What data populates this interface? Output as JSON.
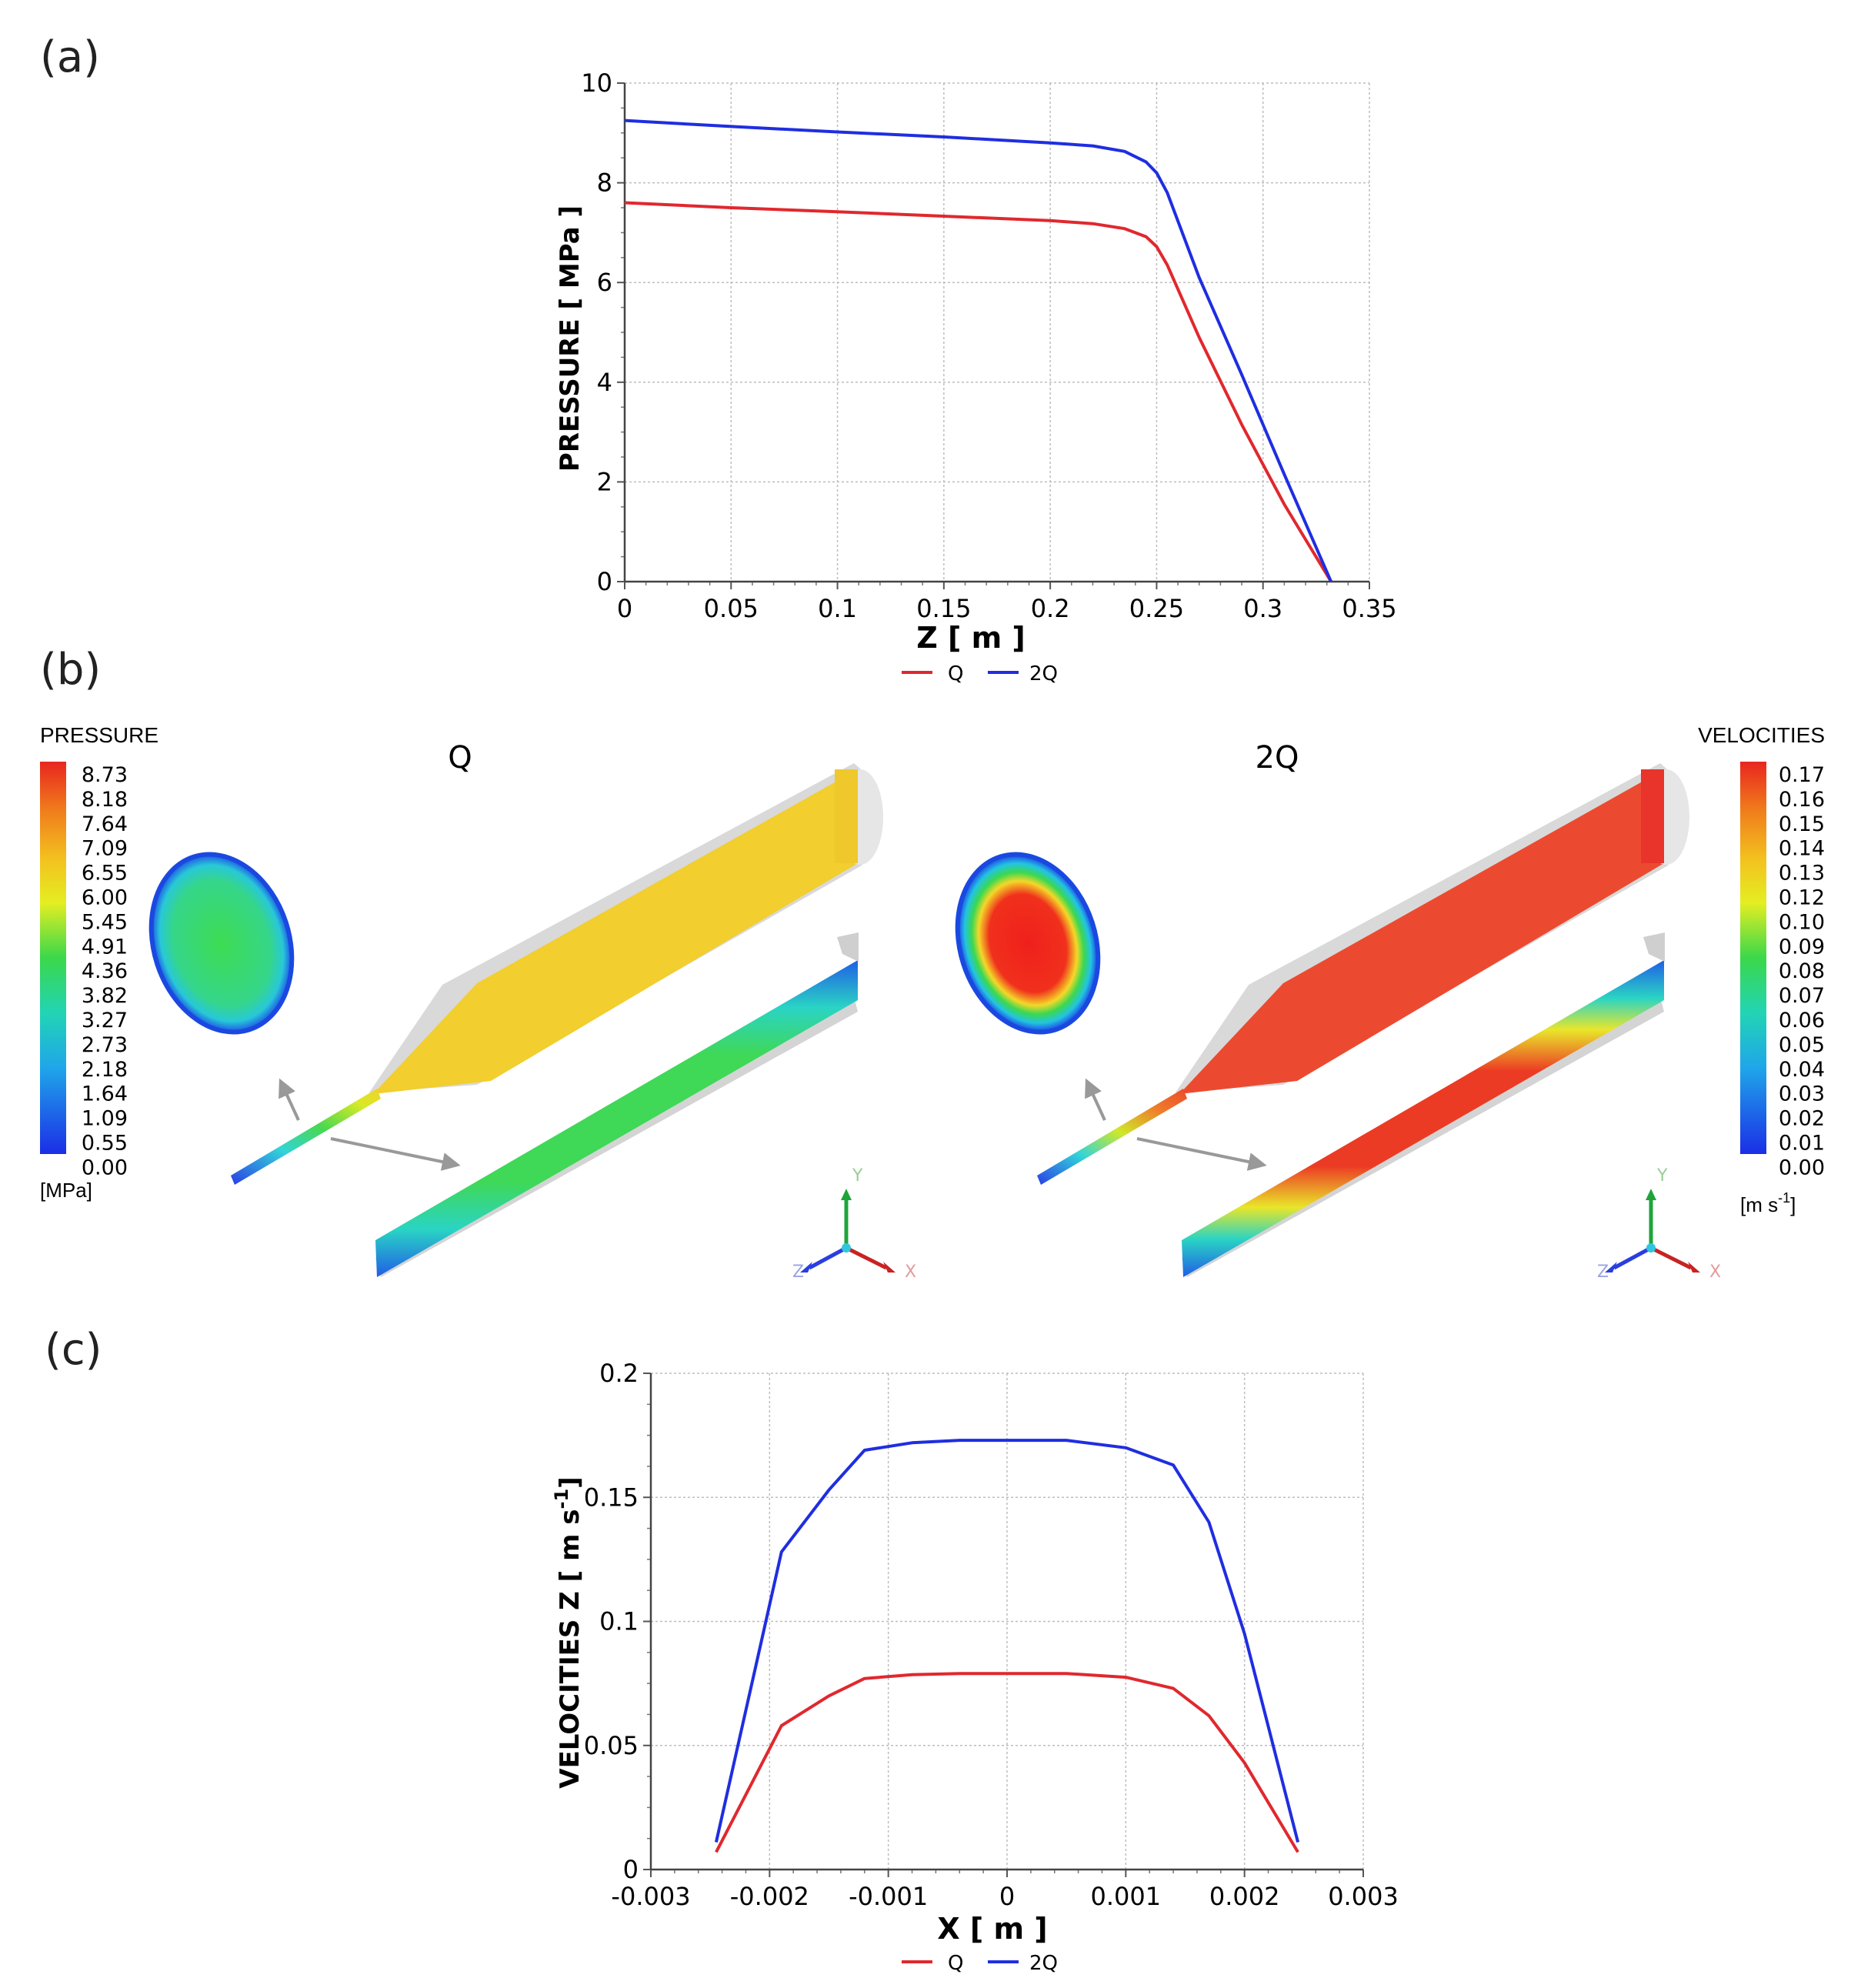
{
  "panels": {
    "a": "(a)",
    "b": "(b)",
    "c": "(c)"
  },
  "colors": {
    "q": "#e0282e",
    "q2": "#1f2ee0",
    "grid": "#bdbdbd",
    "arrow": "#999999",
    "tube": "#d9d9d9"
  },
  "chart_data": [
    {
      "type": "line",
      "xlabel": "Z [ m ]",
      "ylabel": "PRESSURE [ MPa ]",
      "xlim": [
        0,
        0.35
      ],
      "ylim": [
        0,
        10
      ],
      "xticks": [
        0,
        0.05,
        0.1,
        0.15,
        0.2,
        0.25,
        0.3,
        0.35
      ],
      "xtick_labels": [
        "0",
        "0.05",
        "0.1",
        "0.15",
        "0.2",
        "0.25",
        "0.3",
        "0.35"
      ],
      "yticks": [
        0,
        2,
        4,
        6,
        8,
        10
      ],
      "ytick_labels": [
        "0",
        "2",
        "4",
        "6",
        "8",
        "10"
      ],
      "legend": [
        "Q",
        "2Q"
      ],
      "series": [
        {
          "name": "Q",
          "color": "#e0282e",
          "x": [
            0,
            0.05,
            0.1,
            0.15,
            0.2,
            0.22,
            0.235,
            0.245,
            0.25,
            0.255,
            0.27,
            0.29,
            0.31,
            0.332
          ],
          "y": [
            7.6,
            7.5,
            7.42,
            7.33,
            7.24,
            7.18,
            7.08,
            6.92,
            6.72,
            6.35,
            4.9,
            3.15,
            1.55,
            0
          ]
        },
        {
          "name": "2Q",
          "color": "#1f2ee0",
          "x": [
            0,
            0.05,
            0.1,
            0.15,
            0.2,
            0.22,
            0.235,
            0.245,
            0.25,
            0.255,
            0.27,
            0.29,
            0.31,
            0.332
          ],
          "y": [
            9.25,
            9.13,
            9.02,
            8.92,
            8.8,
            8.74,
            8.63,
            8.42,
            8.2,
            7.8,
            6.1,
            4.15,
            2.15,
            0
          ]
        }
      ]
    },
    {
      "type": "line",
      "xlabel": "X [ m ]",
      "ylabel": "VELOCITIES Z [ m s",
      "ylabel_sup": "-1",
      "ylabel_end": "]",
      "xlim": [
        -0.003,
        0.003
      ],
      "ylim": [
        0,
        0.2
      ],
      "xticks": [
        -0.003,
        -0.002,
        -0.001,
        0,
        0.001,
        0.002,
        0.003
      ],
      "xtick_labels": [
        "-0.003",
        "-0.002",
        "-0.001",
        "0",
        "0.001",
        "0.002",
        "0.003"
      ],
      "yticks": [
        0,
        0.05,
        0.1,
        0.15,
        0.2
      ],
      "ytick_labels": [
        "0",
        "0.05",
        "0.1",
        "0.15",
        "0.2"
      ],
      "legend": [
        "Q",
        "2Q"
      ],
      "series": [
        {
          "name": "Q",
          "color": "#e0282e",
          "x": [
            -0.00245,
            -0.0019,
            -0.0015,
            -0.0012,
            -0.0008,
            -0.0004,
            0,
            0.0005,
            0.001,
            0.0014,
            0.0017,
            0.002,
            0.00245
          ],
          "y": [
            0.007,
            0.058,
            0.07,
            0.077,
            0.0785,
            0.079,
            0.079,
            0.079,
            0.0775,
            0.073,
            0.062,
            0.043,
            0.007
          ]
        },
        {
          "name": "2Q",
          "color": "#1f2ee0",
          "x": [
            -0.00245,
            -0.0019,
            -0.0015,
            -0.0012,
            -0.0008,
            -0.0004,
            0,
            0.0005,
            0.001,
            0.0014,
            0.0017,
            0.002,
            0.00245
          ],
          "y": [
            0.011,
            0.128,
            0.153,
            0.169,
            0.172,
            0.173,
            0.173,
            0.173,
            0.17,
            0.163,
            0.14,
            0.095,
            0.011
          ]
        }
      ]
    }
  ],
  "panel_b": {
    "title_q": "Q",
    "title_2q": "2Q",
    "pressure_legend": {
      "title": "PRESSURE",
      "values": [
        "8.73",
        "8.18",
        "7.64",
        "7.09",
        "6.55",
        "6.00",
        "5.45",
        "4.91",
        "4.36",
        "3.82",
        "3.27",
        "2.73",
        "2.18",
        "1.64",
        "1.09",
        "0.55",
        "0.00"
      ],
      "unit": "[MPa]"
    },
    "velocity_legend": {
      "title": "VELOCITIES",
      "values": [
        "0.17",
        "0.16",
        "0.15",
        "0.14",
        "0.13",
        "0.12",
        "0.10",
        "0.09",
        "0.08",
        "0.07",
        "0.06",
        "0.05",
        "0.04",
        "0.03",
        "0.02",
        "0.01",
        "0.00"
      ],
      "unit_base": "[m s",
      "unit_sup": "-1",
      "unit_end": "]"
    },
    "axis_labels": {
      "x": "X",
      "y": "Y",
      "z": "Z"
    }
  }
}
